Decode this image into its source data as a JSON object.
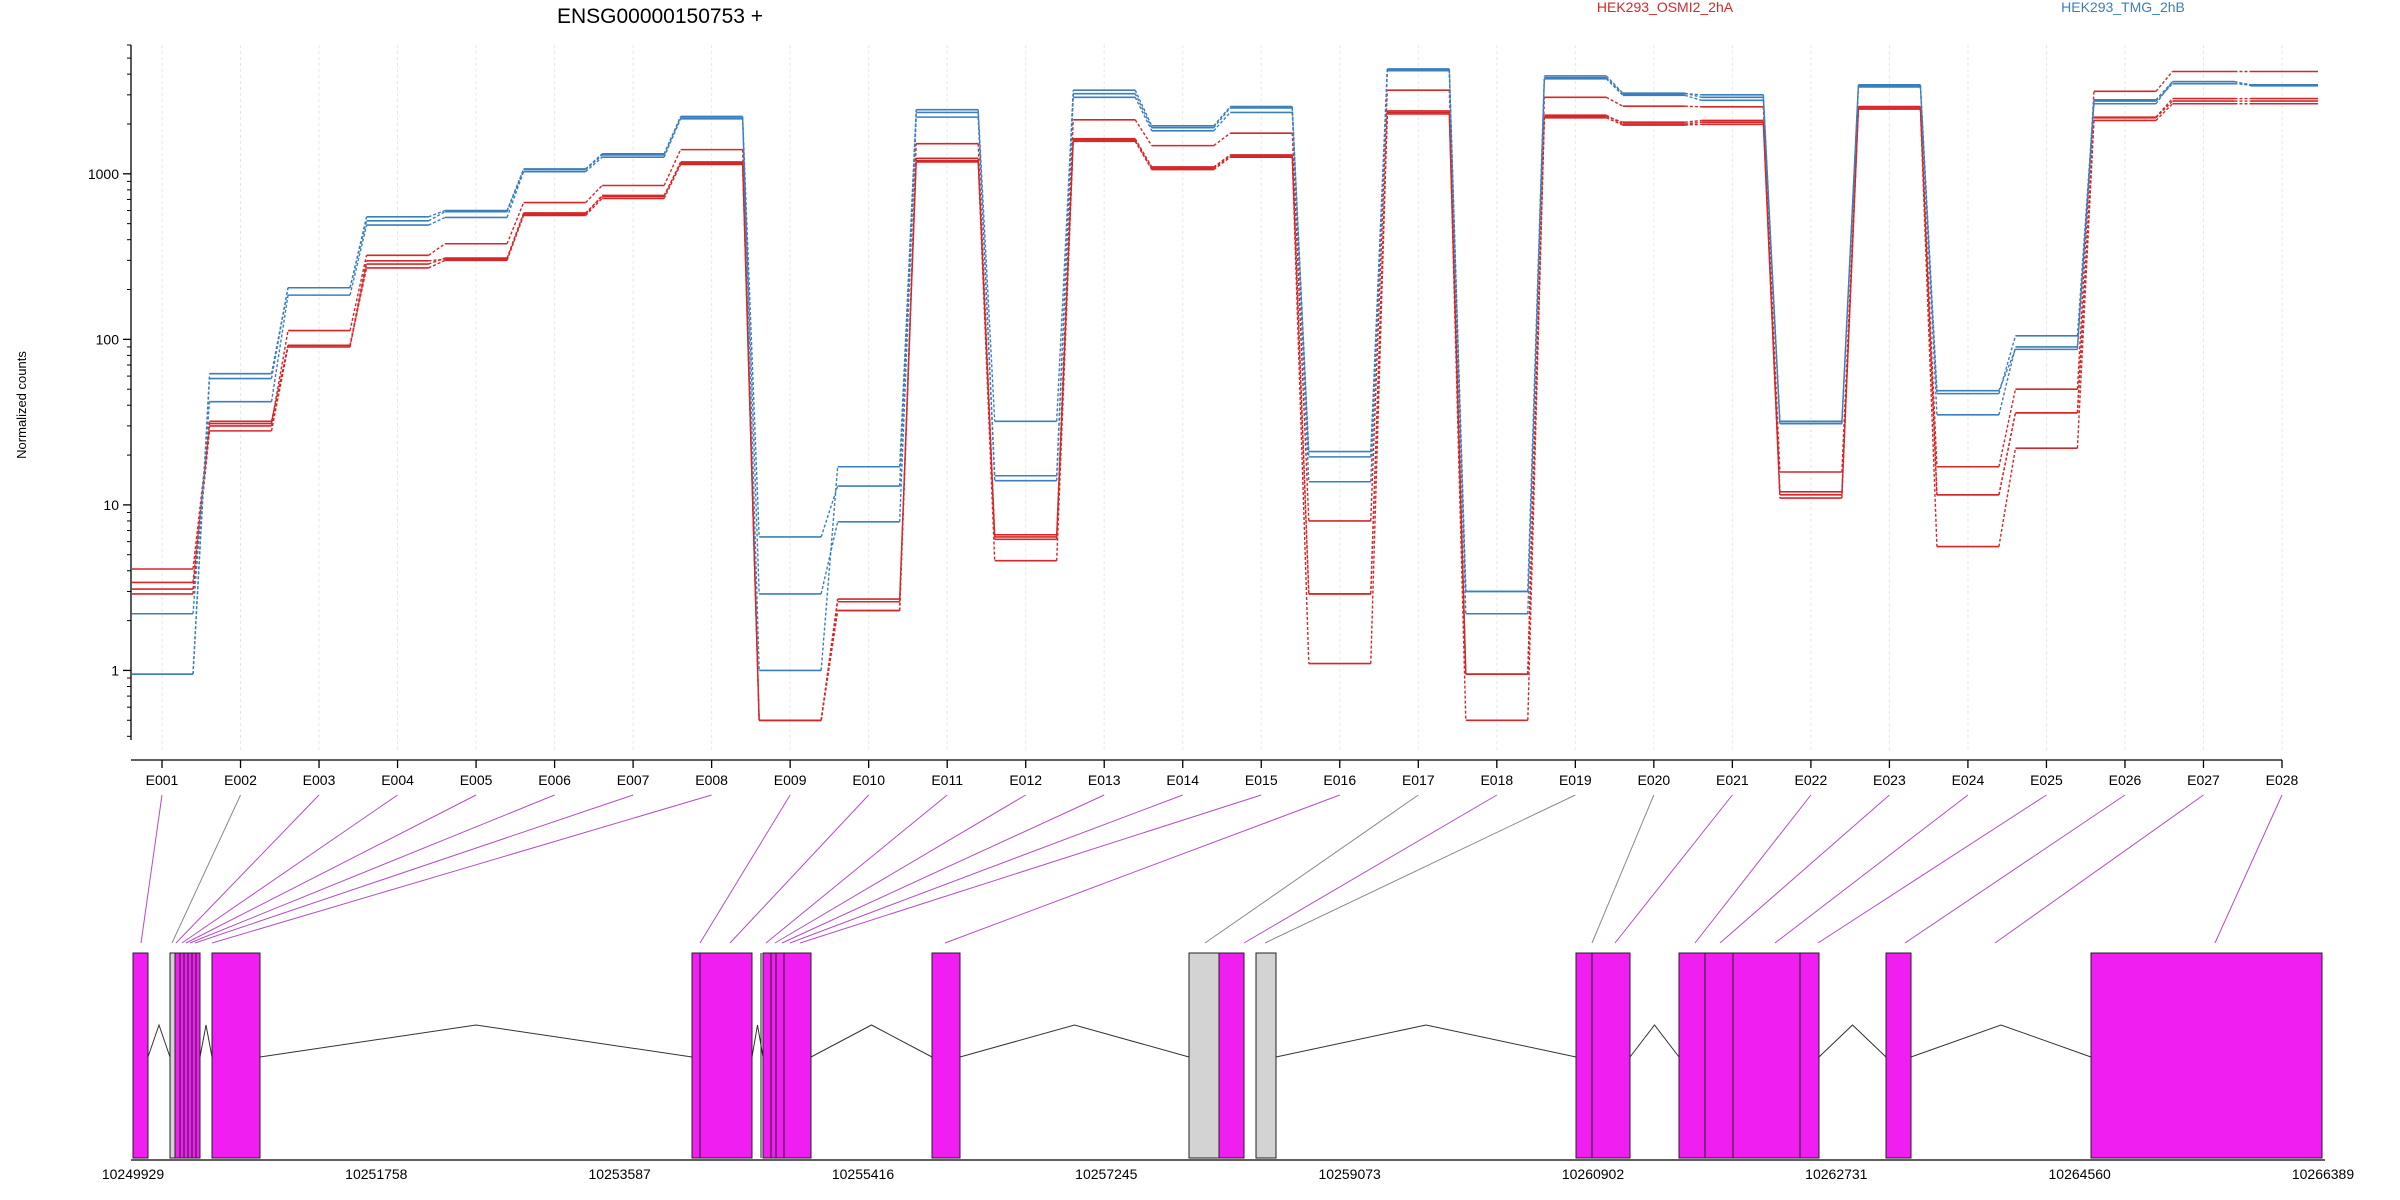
{
  "chart_data": {
    "type": "line",
    "title": "ENSG00000150753 +",
    "ylabel": "Normalized counts",
    "yscale": "log",
    "ylim": [
      0.38,
      6000
    ],
    "yticks": [
      1,
      10,
      100,
      1000
    ],
    "ytick_labels": [
      "1",
      "10",
      "100",
      "1000"
    ],
    "categories": [
      "E001",
      "E002",
      "E003",
      "E004",
      "E005",
      "E006",
      "E007",
      "E008",
      "E009",
      "E010",
      "E011",
      "E012",
      "E013",
      "E014",
      "E015",
      "E016",
      "E017",
      "E018",
      "E019",
      "E020",
      "E021",
      "E022",
      "E023",
      "E024",
      "E025",
      "E026",
      "E027",
      "E028"
    ],
    "legend": [
      {
        "label": "HEK293_OSMI2_2hA",
        "color": "#d62728"
      },
      {
        "label": "HEK293_TMG_2hB",
        "color": "#3a7fbd"
      }
    ],
    "series": [
      {
        "group": "HEK293_OSMI2_2hA",
        "color": "#d62728",
        "values": [
          4.1,
          31,
          113,
          322,
          378,
          670,
          850,
          1400,
          0.5,
          2.3,
          1520,
          6.6,
          2120,
          1480,
          1760,
          8.0,
          3200,
          0.95,
          2900,
          2560,
          2540,
          15.8,
          2550,
          17,
          50,
          3150,
          4150,
          4150
        ]
      },
      {
        "group": "HEK293_OSMI2_2hA",
        "color": "#d62728",
        "values": [
          3.4,
          30,
          92,
          270,
          300,
          560,
          710,
          1140,
          0.5,
          2.6,
          1200,
          6.4,
          1600,
          1080,
          1280,
          2.9,
          2300,
          0.95,
          2180,
          1970,
          1990,
          12,
          2480,
          11.5,
          36,
          2200,
          2850,
          2850
        ]
      },
      {
        "group": "HEK293_OSMI2_2hA",
        "color": "#d62728",
        "values": [
          2.9,
          28,
          90,
          285,
          310,
          580,
          730,
          1180,
          0.5,
          2.7,
          1180,
          4.6,
          1570,
          1060,
          1260,
          1.1,
          2400,
          0.5,
          2260,
          2000,
          2050,
          11,
          2460,
          5.6,
          22,
          2100,
          2650,
          2650
        ]
      },
      {
        "group": "HEK293_OSMI2_2hA",
        "color": "#d62728",
        "values": [
          3.1,
          32,
          92,
          298,
          305,
          570,
          740,
          1160,
          0.5,
          2.3,
          1240,
          6.2,
          1630,
          1100,
          1300,
          2.9,
          2350,
          0.95,
          2220,
          2050,
          2100,
          11.5,
          2530,
          11.5,
          36,
          2180,
          2750,
          2750
        ]
      },
      {
        "group": "HEK293_TMG_2hB",
        "color": "#3a7fbd",
        "values": [
          2.2,
          42,
          185,
          490,
          545,
          1030,
          1260,
          2150,
          2.9,
          7.9,
          2200,
          15,
          2900,
          1820,
          2350,
          13.8,
          4200,
          2.2,
          3750,
          2980,
          2780,
          31,
          3350,
          35,
          90,
          2650,
          3600,
          3450
        ]
      },
      {
        "group": "HEK293_TMG_2hB",
        "color": "#3a7fbd",
        "values": [
          0.95,
          58,
          205,
          520,
          590,
          1060,
          1300,
          2200,
          6.4,
          13,
          2350,
          14,
          3050,
          1900,
          2500,
          19.5,
          4250,
          3.0,
          3900,
          3070,
          2900,
          31,
          3400,
          49,
          87,
          2750,
          3500,
          3450
        ]
      },
      {
        "group": "HEK293_TMG_2hB",
        "color": "#3a7fbd",
        "values": [
          0.95,
          62,
          205,
          550,
          600,
          1070,
          1320,
          2220,
          1.0,
          17,
          2440,
          32,
          3200,
          1950,
          2550,
          21,
          4300,
          3.0,
          3800,
          3050,
          3000,
          32,
          3450,
          47,
          105,
          2800,
          3600,
          3400
        ]
      }
    ]
  },
  "gene_model": {
    "coordinates": [
      "10249929",
      "10251758",
      "10253587",
      "10255416",
      "10257245",
      "10259073",
      "10260902",
      "10262731",
      "10264560",
      "10266389"
    ],
    "exons": [
      {
        "id": "E001",
        "status": "significant"
      },
      {
        "id": "E002",
        "status": "not_significant"
      },
      {
        "id": "E003",
        "status": "significant"
      },
      {
        "id": "E004",
        "status": "significant"
      },
      {
        "id": "E005",
        "status": "significant"
      },
      {
        "id": "E006",
        "status": "significant"
      },
      {
        "id": "E007",
        "status": "significant"
      },
      {
        "id": "E008",
        "status": "significant"
      },
      {
        "id": "E009",
        "status": "significant"
      },
      {
        "id": "E010",
        "status": "significant"
      },
      {
        "id": "E011",
        "status": "significant"
      },
      {
        "id": "E012",
        "status": "significant"
      },
      {
        "id": "E013",
        "status": "significant"
      },
      {
        "id": "E014",
        "status": "significant"
      },
      {
        "id": "E015",
        "status": "significant"
      },
      {
        "id": "E016",
        "status": "significant"
      },
      {
        "id": "E017",
        "status": "not_significant"
      },
      {
        "id": "E018",
        "status": "significant"
      },
      {
        "id": "E019",
        "status": "not_significant"
      },
      {
        "id": "E020",
        "status": "not_significant"
      },
      {
        "id": "E021",
        "status": "significant"
      },
      {
        "id": "E022",
        "status": "significant"
      },
      {
        "id": "E023",
        "status": "significant"
      },
      {
        "id": "E024",
        "status": "significant"
      },
      {
        "id": "E025",
        "status": "significant"
      },
      {
        "id": "E026",
        "status": "significant"
      },
      {
        "id": "E027",
        "status": "significant"
      },
      {
        "id": "E028",
        "status": "significant"
      }
    ],
    "colors": {
      "significant": "#f01ef0",
      "not_significant": "#d3d3d3",
      "connector_significant": "#b54cc6",
      "connector_not_significant": "#8a8a8a"
    }
  }
}
